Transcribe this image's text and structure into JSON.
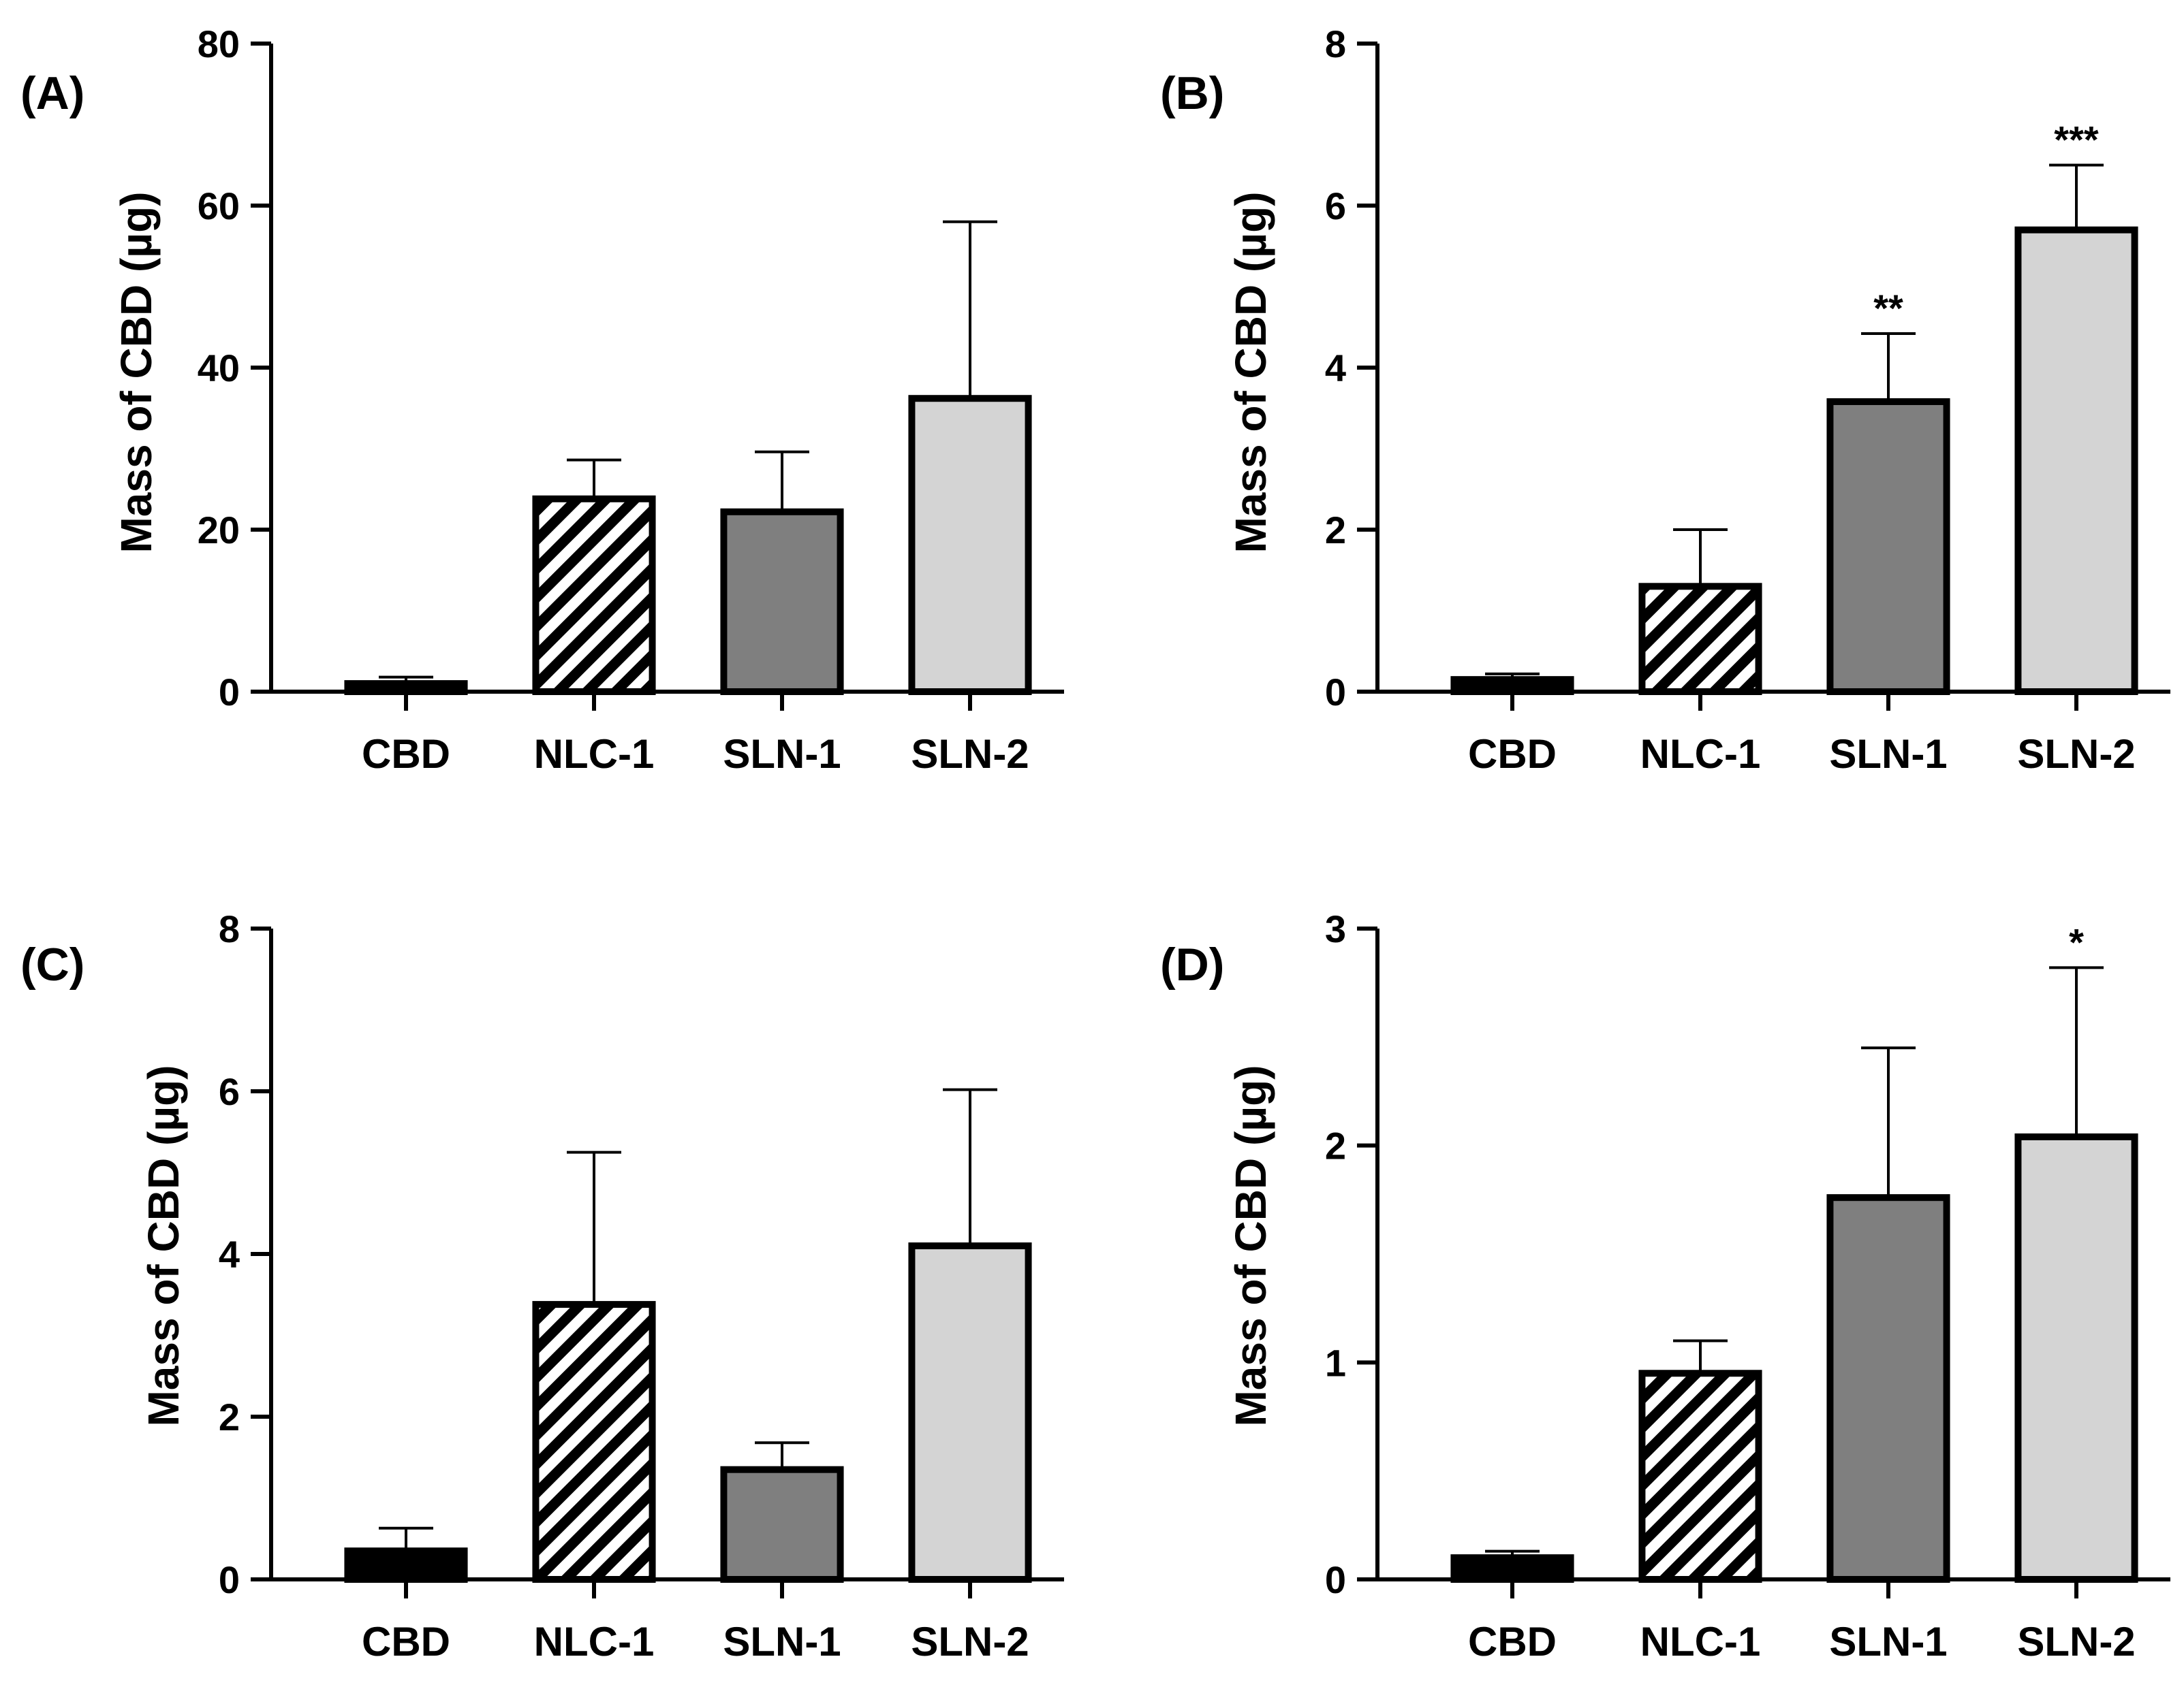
{
  "figure": {
    "background": "#ffffff"
  },
  "chart_data": [
    {
      "panel": "(A)",
      "type": "bar",
      "categories": [
        "CBD",
        "NLC-1",
        "SLN-1",
        "SLN-2"
      ],
      "values": [
        1.0,
        23.8,
        22.2,
        36.2
      ],
      "error_upper": [
        1.8,
        28.6,
        29.6,
        58.0
      ],
      "significance": [
        "",
        "",
        "",
        ""
      ],
      "ylabel": "Mass of CBD (µg)",
      "ylim": [
        0,
        80
      ],
      "yticks": [
        0,
        20,
        40,
        60,
        80
      ],
      "ytick_labels": [
        "0",
        "20",
        "40",
        "60",
        "80"
      ]
    },
    {
      "panel": "(B)",
      "type": "bar",
      "categories": [
        "CBD",
        "NLC-1",
        "SLN-1",
        "SLN-2"
      ],
      "values": [
        0.15,
        1.3,
        3.58,
        5.7
      ],
      "error_upper": [
        0.22,
        2.0,
        4.42,
        6.5
      ],
      "significance": [
        "",
        "",
        "**",
        "***"
      ],
      "ylabel": "Mass of CBD (µg)",
      "ylim": [
        0,
        8
      ],
      "yticks": [
        0,
        2,
        4,
        6,
        8
      ],
      "ytick_labels": [
        "0",
        "2",
        "4",
        "6",
        "8"
      ]
    },
    {
      "panel": "(C)",
      "type": "bar",
      "categories": [
        "CBD",
        "NLC-1",
        "SLN-1",
        "SLN-2"
      ],
      "values": [
        0.35,
        3.38,
        1.35,
        4.1
      ],
      "error_upper": [
        0.63,
        5.25,
        1.68,
        6.02
      ],
      "significance": [
        "",
        "",
        "",
        ""
      ],
      "ylabel": "Mass of CBD (µg)",
      "ylim": [
        0,
        8
      ],
      "yticks": [
        0,
        2,
        4,
        6,
        8
      ],
      "ytick_labels": [
        "0",
        "2",
        "4",
        "6",
        "8"
      ]
    },
    {
      "panel": "(D)",
      "type": "bar",
      "categories": [
        "CBD",
        "NLC-1",
        "SLN-1",
        "SLN-2"
      ],
      "values": [
        0.1,
        0.95,
        1.76,
        2.04
      ],
      "error_upper": [
        0.13,
        1.1,
        2.45,
        2.82
      ],
      "significance": [
        "",
        "",
        "",
        "*"
      ],
      "ylabel": "Mass of CBD (µg)",
      "ylim": [
        0,
        3
      ],
      "yticks": [
        0,
        1,
        2,
        3
      ],
      "ytick_labels": [
        "0",
        "1",
        "2",
        "3"
      ]
    }
  ],
  "bar_styles": [
    {
      "name": "CBD",
      "fill": "#000000",
      "pattern": "solid"
    },
    {
      "name": "NLC-1",
      "fill": "#ffffff",
      "pattern": "hatch"
    },
    {
      "name": "SLN-1",
      "fill": "#7f7f7f",
      "pattern": "solid"
    },
    {
      "name": "SLN-2",
      "fill": "#d4d4d4",
      "pattern": "solid"
    }
  ]
}
